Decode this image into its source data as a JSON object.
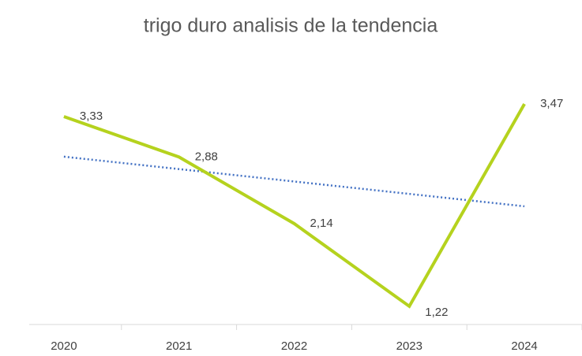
{
  "chart_data": {
    "type": "line",
    "title": "trigo duro analisis de la tendencia",
    "categories": [
      "2020",
      "2021",
      "2022",
      "2023",
      "2024"
    ],
    "series": [
      {
        "name": "trigo duro",
        "color": "#b5d21e",
        "values": [
          3.33,
          2.88,
          2.14,
          1.22,
          3.47
        ],
        "value_labels": [
          "3,33",
          "2,88",
          "2,14",
          "1,22",
          "3,47"
        ]
      }
    ],
    "trendline": {
      "type": "linear",
      "color": "#4472c4",
      "style": "dotted"
    },
    "ylim": [
      1,
      3.5
    ]
  }
}
